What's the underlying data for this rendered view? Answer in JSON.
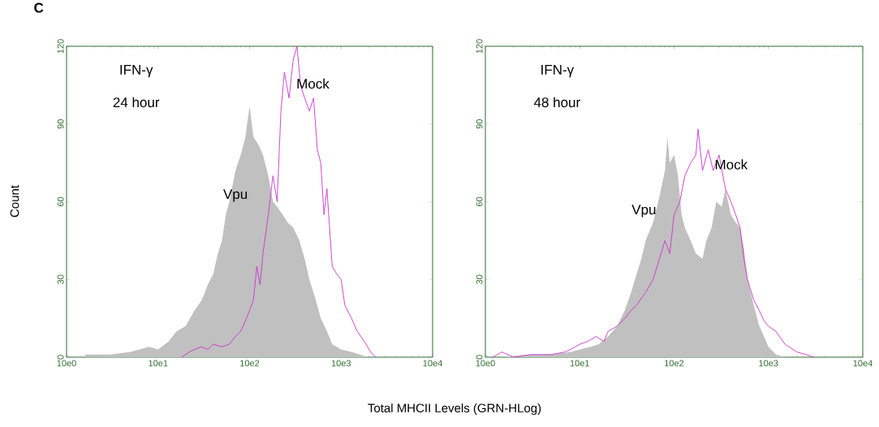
{
  "chart_data": [
    {
      "type": "area",
      "title": "C",
      "ylabel": "Count",
      "xlabel": "Total MHCII Levels (GRN-HLog)",
      "annotations": [
        "IFN-γ",
        "24 hour"
      ],
      "log": "x",
      "xlim": [
        10,
        100000
      ],
      "ylim": [
        0,
        120
      ],
      "xticks": [
        {
          "value": 10,
          "label": "10e0"
        },
        {
          "value": 100,
          "label": "10e1"
        },
        {
          "value": 1000,
          "label": "10e2"
        },
        {
          "value": 10000,
          "label": "10e3"
        },
        {
          "value": 100000,
          "label": "10e4"
        }
      ],
      "yticks": [
        0,
        30,
        60,
        90,
        120
      ],
      "series": [
        {
          "name": "Vpu",
          "color": "#c0c0c0",
          "x": [
            16,
            30,
            50,
            80,
            100,
            130,
            160,
            200,
            250,
            300,
            350,
            400,
            450,
            500,
            550,
            600,
            700,
            800,
            900,
            1000,
            1100,
            1250,
            1400,
            1600,
            1800,
            2000,
            2300,
            2600,
            3000,
            3500,
            4000,
            4500,
            5000,
            6000,
            7000,
            8000,
            10000,
            13000,
            16000,
            20000
          ],
          "values": [
            1,
            1,
            2,
            4,
            3,
            6,
            10,
            12,
            18,
            22,
            28,
            32,
            40,
            45,
            55,
            60,
            72,
            78,
            85,
            97,
            85,
            82,
            78,
            70,
            60,
            58,
            55,
            52,
            50,
            45,
            38,
            30,
            25,
            15,
            10,
            5,
            3,
            2,
            1,
            0
          ]
        },
        {
          "name": "Mock",
          "type": "line",
          "color": "#cc33cc",
          "x": [
            180,
            220,
            250,
            300,
            350,
            400,
            500,
            600,
            700,
            800,
            900,
            1000,
            1100,
            1200,
            1300,
            1400,
            1600,
            1800,
            2000,
            2200,
            2400,
            2700,
            3000,
            3300,
            3600,
            4000,
            4500,
            5000,
            5500,
            6000,
            6500,
            7000,
            8000,
            9000,
            10000,
            11000,
            13000,
            15000,
            18000,
            21000,
            24000
          ],
          "values": [
            0,
            2,
            3,
            4,
            3,
            5,
            4,
            5,
            8,
            10,
            14,
            18,
            22,
            35,
            28,
            40,
            55,
            70,
            60,
            95,
            110,
            100,
            115,
            120,
            105,
            100,
            95,
            100,
            80,
            75,
            55,
            65,
            35,
            32,
            30,
            20,
            15,
            10,
            6,
            2,
            0
          ]
        }
      ]
    },
    {
      "type": "area",
      "annotations": [
        "IFN-γ",
        "48 hour"
      ],
      "log": "x",
      "xlim": [
        10,
        100000
      ],
      "ylim": [
        0,
        120
      ],
      "xticks": [
        {
          "value": 10,
          "label": "10e0"
        },
        {
          "value": 100,
          "label": "10e1"
        },
        {
          "value": 1000,
          "label": "10e2"
        },
        {
          "value": 10000,
          "label": "10e3"
        },
        {
          "value": 100000,
          "label": "10e4"
        }
      ],
      "yticks": [
        0,
        30,
        60,
        90,
        120
      ],
      "series": [
        {
          "name": "Vpu",
          "color": "#c0c0c0",
          "x": [
            15,
            30,
            50,
            80,
            100,
            130,
            160,
            200,
            250,
            300,
            350,
            400,
            450,
            500,
            600,
            700,
            800,
            850,
            900,
            1000,
            1100,
            1200,
            1300,
            1500,
            1700,
            2000,
            2200,
            2500,
            2800,
            3200,
            3500,
            4000,
            4500,
            5000,
            5500,
            6000,
            7000,
            8000,
            9000,
            10000,
            12000,
            15000
          ],
          "values": [
            0,
            1,
            1,
            2,
            3,
            4,
            5,
            8,
            12,
            18,
            25,
            32,
            38,
            45,
            52,
            62,
            72,
            85,
            75,
            78,
            70,
            55,
            50,
            45,
            40,
            38,
            45,
            50,
            60,
            58,
            65,
            55,
            52,
            50,
            42,
            30,
            20,
            12,
            8,
            4,
            1,
            0
          ]
        },
        {
          "name": "Mock",
          "type": "line",
          "color": "#cc33cc",
          "x": [
            12,
            15,
            20,
            30,
            50,
            70,
            90,
            100,
            120,
            150,
            180,
            200,
            250,
            300,
            350,
            400,
            500,
            600,
            700,
            800,
            900,
            1000,
            1150,
            1300,
            1500,
            1700,
            1800,
            2000,
            2300,
            2600,
            3000,
            3500,
            4000,
            4500,
            5000,
            5500,
            6000,
            7000,
            8000,
            9000,
            10000,
            12000,
            15000,
            20000,
            25000,
            30000
          ],
          "values": [
            0,
            2,
            0,
            1,
            1,
            2,
            4,
            5,
            6,
            8,
            6,
            10,
            12,
            15,
            18,
            20,
            25,
            30,
            38,
            45,
            40,
            55,
            60,
            70,
            75,
            78,
            88,
            72,
            80,
            72,
            78,
            65,
            60,
            55,
            50,
            38,
            30,
            22,
            18,
            14,
            12,
            10,
            5,
            2,
            1,
            0
          ]
        }
      ]
    }
  ]
}
